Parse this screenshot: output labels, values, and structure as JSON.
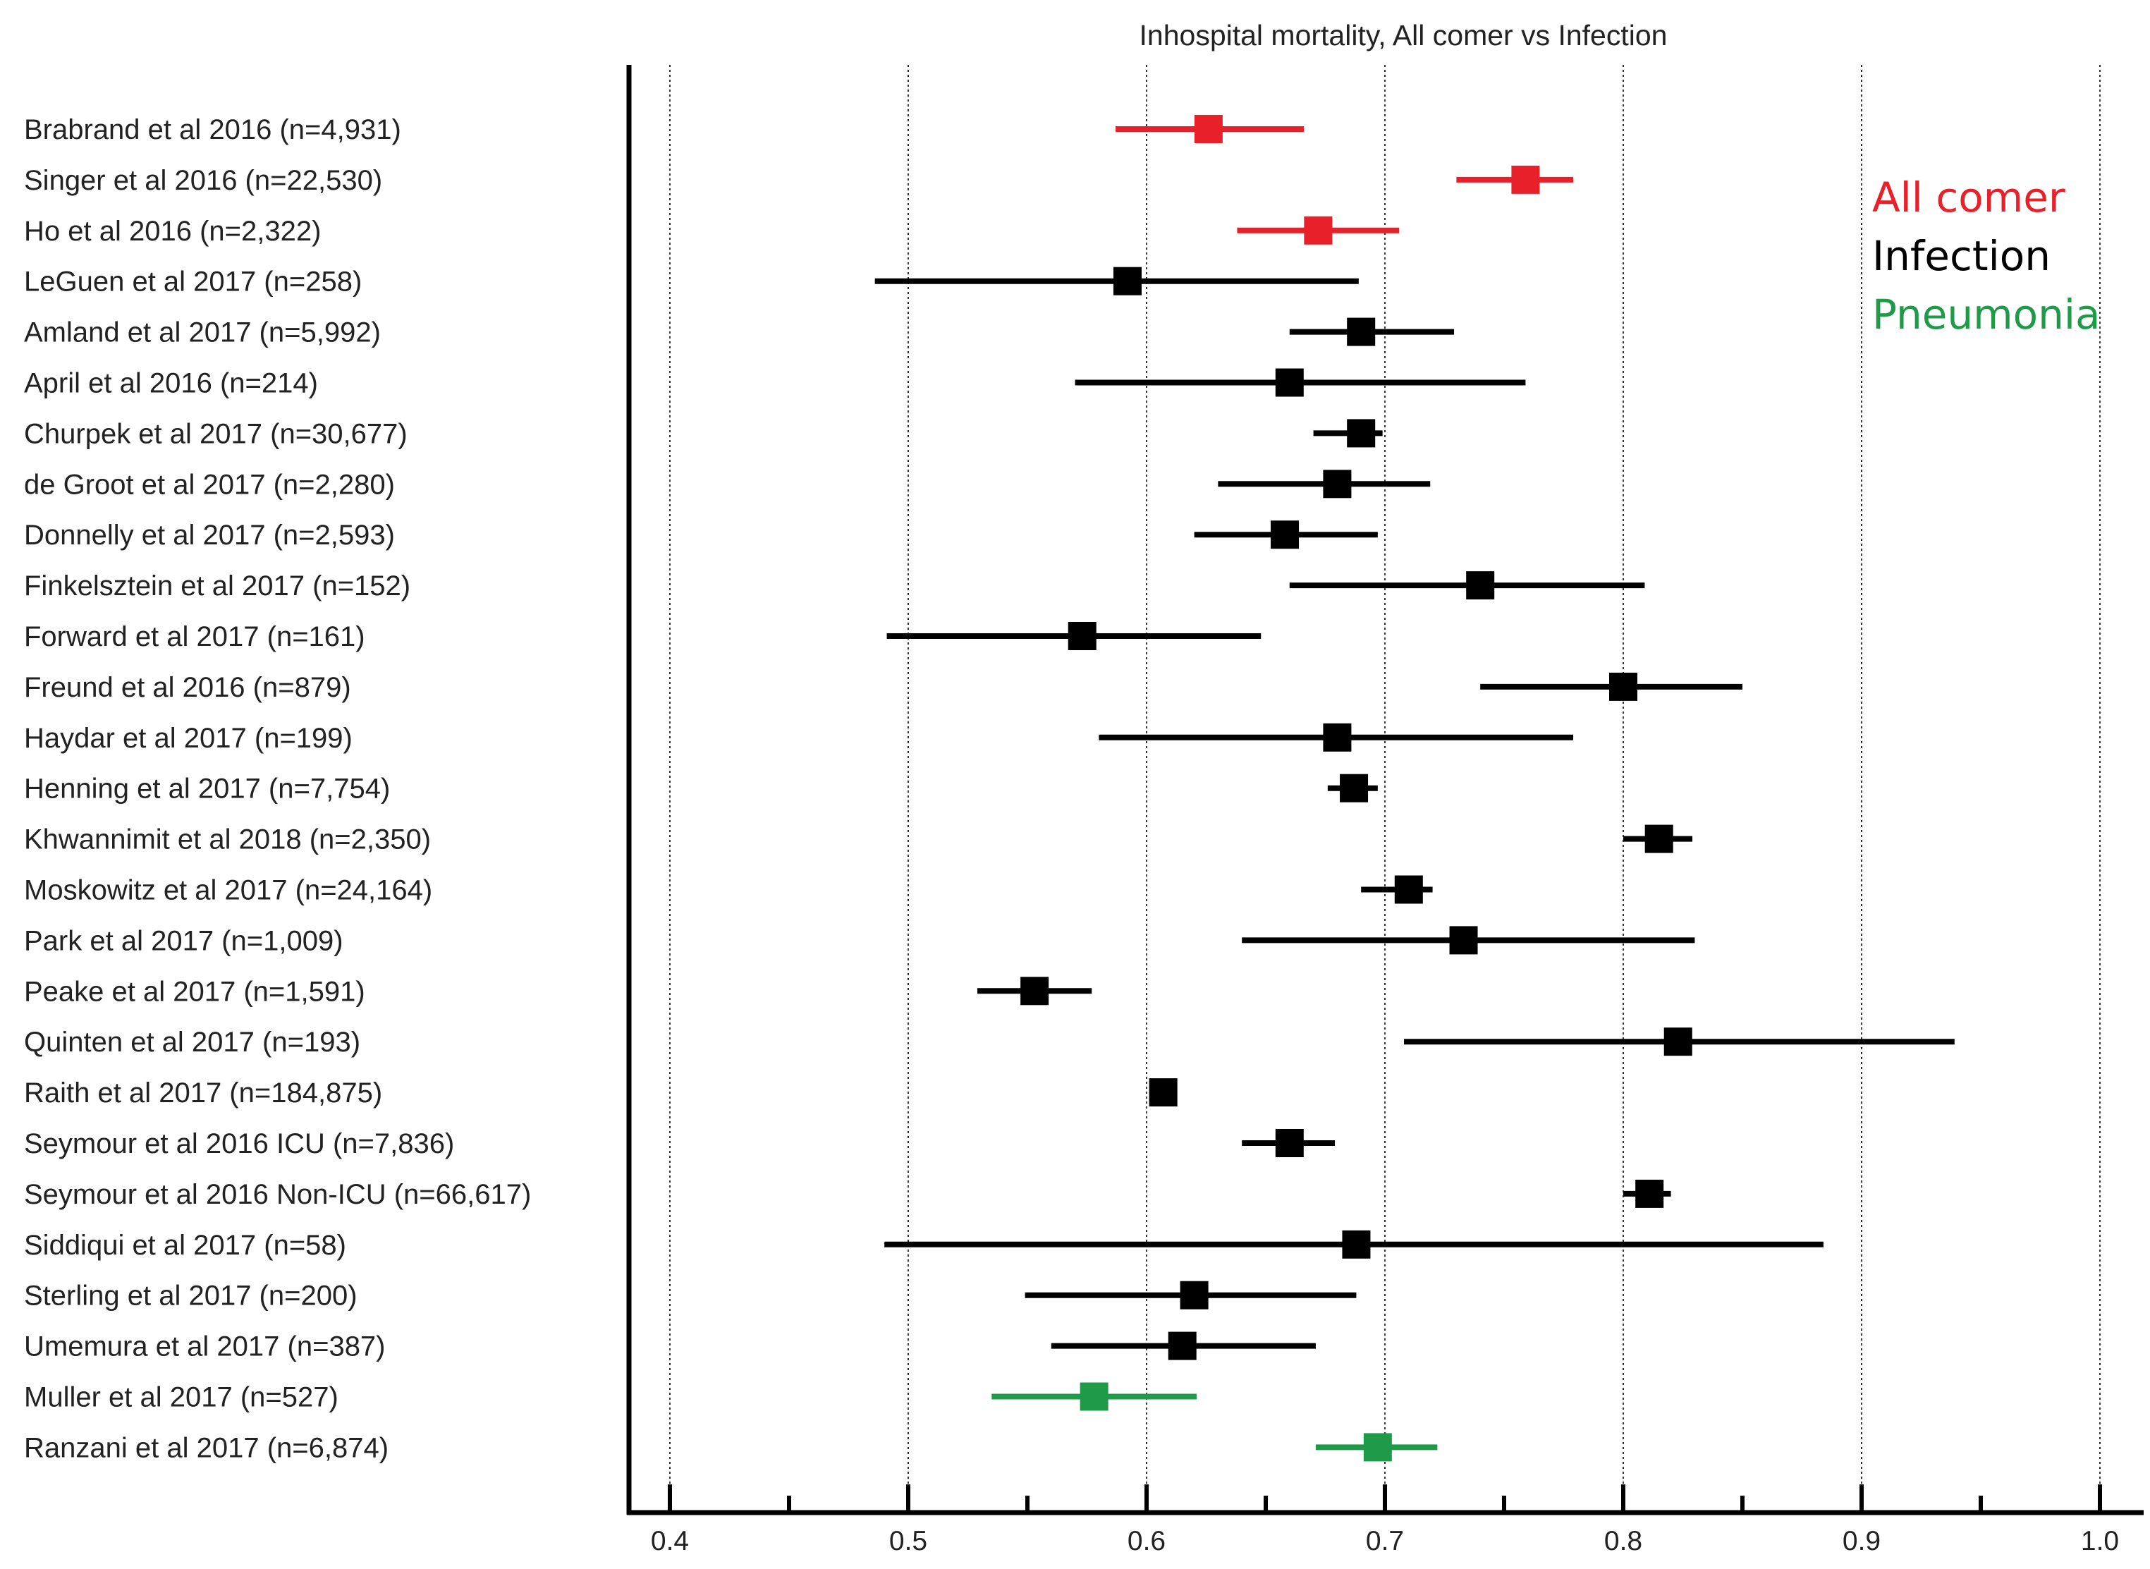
{
  "chart_data": {
    "type": "forest",
    "title": "Inhospital mortality, All comer vs Infection",
    "xlabel": "",
    "ylabel": "",
    "xlim": [
      0.38,
      1.02
    ],
    "xticks": [
      "0.4",
      "0.5",
      "0.6",
      "0.7",
      "0.8",
      "0.9",
      "1.0"
    ],
    "xtick_values": [
      0.4,
      0.5,
      0.6,
      0.7,
      0.8,
      0.9,
      1.0
    ],
    "grid": "vertical dotted",
    "legend_position": "top-right",
    "legend": [
      {
        "name": "All comer",
        "color": "#e8202a"
      },
      {
        "name": "Infection",
        "color": "#000000"
      },
      {
        "name": "Pneumonia",
        "color": "#1f9a48"
      }
    ],
    "studies": [
      {
        "label": "Brabrand et al 2016 (n=4,931)",
        "group": "All comer",
        "estimate": 0.626,
        "low": 0.587,
        "high": 0.666
      },
      {
        "label": "Singer et al 2016 (n=22,530)",
        "group": "All comer",
        "estimate": 0.759,
        "low": 0.73,
        "high": 0.779
      },
      {
        "label": "Ho et al 2016 (n=2,322)",
        "group": "All comer",
        "estimate": 0.672,
        "low": 0.638,
        "high": 0.706
      },
      {
        "label": "LeGuen et al 2017 (n=258)",
        "group": "Infection",
        "estimate": 0.592,
        "low": 0.486,
        "high": 0.689
      },
      {
        "label": "Amland et al 2017 (n=5,992)",
        "group": "Infection",
        "estimate": 0.69,
        "low": 0.66,
        "high": 0.729
      },
      {
        "label": "April et al 2016 (n=214)",
        "group": "Infection",
        "estimate": 0.66,
        "low": 0.57,
        "high": 0.759
      },
      {
        "label": "Churpek et al 2017 (n=30,677)",
        "group": "Infection",
        "estimate": 0.69,
        "low": 0.67,
        "high": 0.699
      },
      {
        "label": "de Groot et al 2017 (n=2,280)",
        "group": "Infection",
        "estimate": 0.68,
        "low": 0.63,
        "high": 0.719
      },
      {
        "label": "Donnelly et al 2017 (n=2,593)",
        "group": "Infection",
        "estimate": 0.658,
        "low": 0.62,
        "high": 0.697
      },
      {
        "label": "Finkelsztein et al 2017 (n=152)",
        "group": "Infection",
        "estimate": 0.74,
        "low": 0.66,
        "high": 0.809
      },
      {
        "label": "Forward et al 2017 (n=161)",
        "group": "Infection",
        "estimate": 0.573,
        "low": 0.491,
        "high": 0.648
      },
      {
        "label": "Freund et al 2016 (n=879)",
        "group": "Infection",
        "estimate": 0.8,
        "low": 0.74,
        "high": 0.85
      },
      {
        "label": "Haydar et al 2017 (n=199)",
        "group": "Infection",
        "estimate": 0.68,
        "low": 0.58,
        "high": 0.779
      },
      {
        "label": "Henning et al 2017 (n=7,754)",
        "group": "Infection",
        "estimate": 0.687,
        "low": 0.676,
        "high": 0.697
      },
      {
        "label": "Khwannimit et al 2018 (n=2,350)",
        "group": "Infection",
        "estimate": 0.815,
        "low": 0.8,
        "high": 0.829
      },
      {
        "label": "Moskowitz et al 2017 (n=24,164)",
        "group": "Infection",
        "estimate": 0.71,
        "low": 0.69,
        "high": 0.72
      },
      {
        "label": "Park et al 2017 (n=1,009)",
        "group": "Infection",
        "estimate": 0.733,
        "low": 0.64,
        "high": 0.83
      },
      {
        "label": "Peake et al 2017 (n=1,591)",
        "group": "Infection",
        "estimate": 0.553,
        "low": 0.529,
        "high": 0.577
      },
      {
        "label": "Quinten et al 2017 (n=193)",
        "group": "Infection",
        "estimate": 0.823,
        "low": 0.708,
        "high": 0.939
      },
      {
        "label": "Raith et al 2017 (n=184,875)",
        "group": "Infection",
        "estimate": 0.607,
        "low": 0.603,
        "high": 0.611
      },
      {
        "label": "Seymour et al 2016 ICU (n=7,836)",
        "group": "Infection",
        "estimate": 0.66,
        "low": 0.64,
        "high": 0.679
      },
      {
        "label": "Seymour et al 2016 Non-ICU (n=66,617)",
        "group": "Infection",
        "estimate": 0.811,
        "low": 0.8,
        "high": 0.82
      },
      {
        "label": "Siddiqui et al 2017 (n=58)",
        "group": "Infection",
        "estimate": 0.688,
        "low": 0.49,
        "high": 0.884
      },
      {
        "label": "Sterling et al 2017 (n=200)",
        "group": "Infection",
        "estimate": 0.62,
        "low": 0.549,
        "high": 0.688
      },
      {
        "label": "Umemura et al 2017 (n=387)",
        "group": "Infection",
        "estimate": 0.615,
        "low": 0.56,
        "high": 0.671
      },
      {
        "label": "Muller et al 2017 (n=527)",
        "group": "Pneumonia",
        "estimate": 0.578,
        "low": 0.535,
        "high": 0.621
      },
      {
        "label": "Ranzani et al 2017 (n=6,874)",
        "group": "Pneumonia",
        "estimate": 0.697,
        "low": 0.671,
        "high": 0.722
      }
    ]
  }
}
